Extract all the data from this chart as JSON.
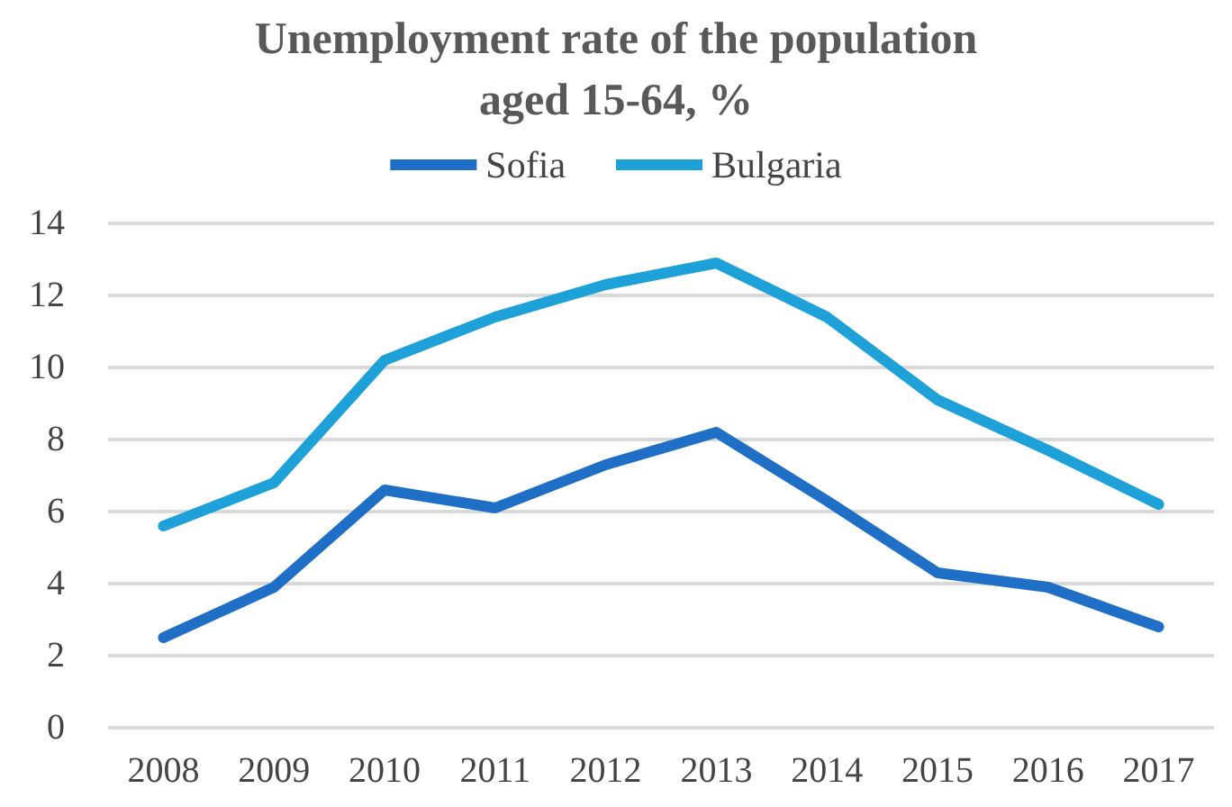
{
  "chart_data": {
    "type": "line",
    "title": "Unemployment rate of the population\naged 15-64, %",
    "categories": [
      "2008",
      "2009",
      "2010",
      "2011",
      "2012",
      "2013",
      "2014",
      "2015",
      "2016",
      "2017"
    ],
    "series": [
      {
        "name": "Sofia",
        "color": "#1f6fc6",
        "values": [
          2.5,
          3.9,
          6.6,
          6.1,
          7.3,
          8.2,
          6.3,
          4.3,
          3.9,
          2.8
        ]
      },
      {
        "name": "Bulgaria",
        "color": "#1ea0d8",
        "values": [
          5.6,
          6.8,
          10.2,
          11.4,
          12.3,
          12.9,
          11.4,
          9.1,
          7.7,
          6.2
        ]
      }
    ],
    "ylim": [
      0,
      14
    ],
    "yticks": [
      0,
      2,
      4,
      6,
      8,
      10,
      12,
      14
    ],
    "grid": "y",
    "legend": "top",
    "marker": "none",
    "line_style": "solid"
  }
}
